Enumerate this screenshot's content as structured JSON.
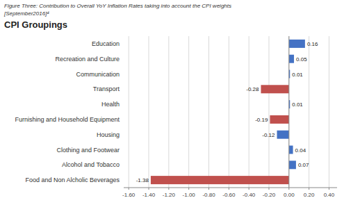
{
  "chart_data": {
    "type": "bar",
    "orientation": "horizontal",
    "title": "Figure Three: Contribution to Overall YoY Inflation Rates taking into account the CPI weights",
    "subtitle": "[September2016]⁴",
    "annotations": [
      "CPI Groupings"
    ],
    "categories": [
      "Food and Non Alcholic Beverages",
      "Alcohol and Tobacco",
      "Clothing and Footwear",
      "Housing",
      "Furnishing and Household Equipment",
      "Health",
      "Transport",
      "Communication",
      "Recreation and Culture",
      "Education"
    ],
    "values": [
      -1.38,
      0.07,
      0.04,
      -0.12,
      -0.19,
      0.01,
      -0.28,
      0.01,
      0.05,
      0.16
    ],
    "colors": [
      "#C0504D",
      "#4472C4",
      "#4472C4",
      "#4472C4",
      "#C0504D",
      "#4472C4",
      "#C0504D",
      "#4472C4",
      "#4472C4",
      "#4472C4"
    ],
    "xlim": [
      -1.65,
      0.48
    ],
    "xticks": [
      {
        "value": -1.6,
        "label": "-1.60"
      },
      {
        "value": -1.4,
        "label": "-1.40"
      },
      {
        "value": -1.2,
        "label": "-1.20"
      },
      {
        "value": -1.0,
        "label": "-1.00"
      },
      {
        "value": -0.8,
        "label": "-0.80"
      },
      {
        "value": -0.6,
        "label": "-0.60"
      },
      {
        "value": -0.4,
        "label": "-0.40"
      },
      {
        "value": -0.2,
        "label": "-0.20"
      },
      {
        "value": 0.0,
        "label": "0.00"
      },
      {
        "value": 0.2,
        "label": "0.20"
      },
      {
        "value": 0.4,
        "label": "0.40"
      }
    ],
    "grid": true,
    "data_labels": true
  }
}
